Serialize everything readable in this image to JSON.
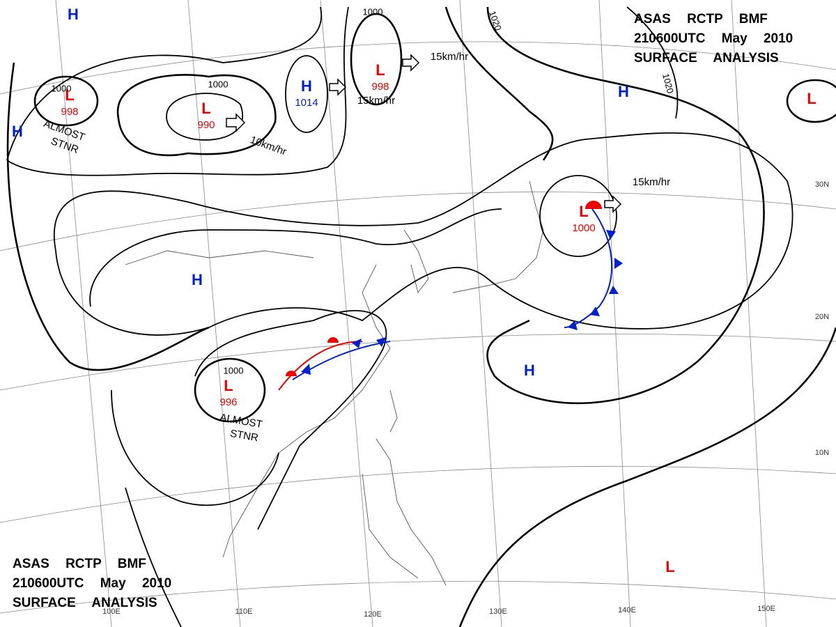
{
  "header": {
    "top": [
      "ASAS RCTP BMF",
      "210600UTC May 2010",
      "SURFACE ANALYSIS"
    ],
    "bottom": [
      "ASAS RCTP BMF",
      "210600UTC May 2010",
      "SURFACE ANALYSIS"
    ]
  },
  "pressure_centers": [
    {
      "label": "H"
    },
    {
      "label": "H"
    },
    {
      "label": "L",
      "value": "998"
    },
    {
      "label": "L",
      "value": "990"
    },
    {
      "label": "H",
      "value": "1014"
    },
    {
      "label": "L",
      "value": "998"
    },
    {
      "label": "H"
    },
    {
      "label": "L"
    },
    {
      "label": "L",
      "value": "1000"
    },
    {
      "label": "H"
    },
    {
      "label": "L",
      "value": "996"
    },
    {
      "label": "H"
    },
    {
      "label": "L"
    }
  ],
  "isobar_labels": [
    "1000",
    "1000",
    "1000",
    "1000",
    "1020",
    "1020"
  ],
  "motion_labels": [
    "10km/hr",
    "15km/hr",
    "15km/hr",
    "15km/hr"
  ],
  "notes": [
    [
      "ALMOST",
      "STNR"
    ],
    [
      "ALMOST",
      "STNR"
    ]
  ],
  "grid_labels": [
    "30N",
    "20N",
    "10N",
    "100E",
    "110E",
    "120E",
    "130E",
    "140E",
    "150E"
  ]
}
